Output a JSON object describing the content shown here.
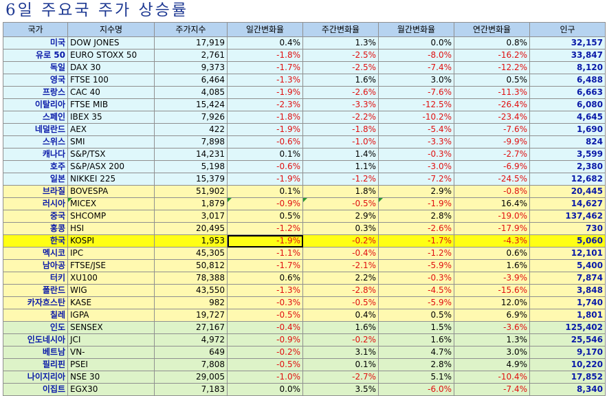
{
  "title": "6일 주요국 주가 상승률",
  "headers": [
    "국가",
    "지수명",
    "주가지수",
    "일간변화율",
    "주간변화율",
    "월간변화율",
    "연간변화율",
    "인구"
  ],
  "rows": [
    {
      "country": "미국",
      "index": "DOW JONES",
      "level": "17,919",
      "d": "0.4%",
      "w": "1.3%",
      "m": "0.0%",
      "y": "0.8%",
      "pop": "32,157"
    },
    {
      "country": "유로 50",
      "index": "EURO STOXX 50",
      "level": "2,761",
      "d": "-1.8%",
      "w": "-2.5%",
      "m": "-8.0%",
      "y": "-16.2%",
      "pop": "33,847"
    },
    {
      "country": "독일",
      "index": "DAX 30",
      "level": "9,373",
      "d": "-1.7%",
      "w": "-2.5%",
      "m": "-7.4%",
      "y": "-12.2%",
      "pop": "8,120"
    },
    {
      "country": "영국",
      "index": "FTSE 100",
      "level": "6,464",
      "d": "-1.3%",
      "w": "1.6%",
      "m": "3.0%",
      "y": "0.5%",
      "pop": "6,488"
    },
    {
      "country": "프랑스",
      "index": "CAC 40",
      "level": "4,085",
      "d": "-1.9%",
      "w": "-2.6%",
      "m": "-7.6%",
      "y": "-11.3%",
      "pop": "6,663"
    },
    {
      "country": "이탈리아",
      "index": "FTSE MIB",
      "level": "15,424",
      "d": "-2.3%",
      "w": "-3.3%",
      "m": "-12.5%",
      "y": "-26.4%",
      "pop": "6,080"
    },
    {
      "country": "스페인",
      "index": "IBEX 35",
      "level": "7,926",
      "d": "-1.8%",
      "w": "-2.2%",
      "m": "-10.2%",
      "y": "-23.4%",
      "pop": "4,645"
    },
    {
      "country": "네덜란드",
      "index": "AEX",
      "level": "422",
      "d": "-1.9%",
      "w": "-1.8%",
      "m": "-5.4%",
      "y": "-7.6%",
      "pop": "1,690"
    },
    {
      "country": "스위스",
      "index": "SMI",
      "level": "7,898",
      "d": "-0.6%",
      "w": "-1.0%",
      "m": "-3.3%",
      "y": "-9.9%",
      "pop": "824"
    },
    {
      "country": "캐나다",
      "index": "S&P/TSX",
      "level": "14,231",
      "d": "0.1%",
      "w": "1.4%",
      "m": "-0.3%",
      "y": "-2.7%",
      "pop": "3,599"
    },
    {
      "country": "호주",
      "index": "S&P/ASX 200",
      "level": "5,198",
      "d": "-0.6%",
      "w": "1.1%",
      "m": "-3.0%",
      "y": "-6.9%",
      "pop": "2,380"
    },
    {
      "country": "일본",
      "index": "NIKKEI 225",
      "level": "15,379",
      "d": "-1.9%",
      "w": "-1.2%",
      "m": "-7.2%",
      "y": "-24.5%",
      "pop": "12,682"
    },
    {
      "country": "브라질",
      "index": "BOVESPA",
      "level": "51,902",
      "d": "0.1%",
      "w": "1.8%",
      "m": "2.9%",
      "y": "-0.8%",
      "pop": "20,445"
    },
    {
      "country": "러시아",
      "index": "MICEX",
      "level": "1,879",
      "d": "-0.9%",
      "w": "-0.5%",
      "m": "-1.9%",
      "y": "16.4%",
      "pop": "14,627"
    },
    {
      "country": "중국",
      "index": "SHCOMP",
      "level": "3,017",
      "d": "0.5%",
      "w": "2.9%",
      "m": "2.8%",
      "y": "-19.0%",
      "pop": "137,462"
    },
    {
      "country": "홍콩",
      "index": "HSI",
      "level": "20,495",
      "d": "-1.2%",
      "w": "0.3%",
      "m": "-2.6%",
      "y": "-17.9%",
      "pop": "730"
    },
    {
      "country": "한국",
      "index": "KOSPI",
      "level": "1,953",
      "d": "-1.9%",
      "w": "-0.2%",
      "m": "-1.7%",
      "y": "-4.3%",
      "pop": "5,060"
    },
    {
      "country": "멕시코",
      "index": "IPC",
      "level": "45,305",
      "d": "-1.1%",
      "w": "-0.4%",
      "m": "-1.2%",
      "y": "0.6%",
      "pop": "12,101"
    },
    {
      "country": "남아공",
      "index": "FTSE/JSE",
      "level": "50,812",
      "d": "-1.7%",
      "w": "-2.1%",
      "m": "-5.9%",
      "y": "1.6%",
      "pop": "5,400"
    },
    {
      "country": "터키",
      "index": "XU100",
      "level": "78,388",
      "d": "0.6%",
      "w": "2.2%",
      "m": "-0.3%",
      "y": "-3.9%",
      "pop": "7,874"
    },
    {
      "country": "폴란드",
      "index": "WIG",
      "level": "43,550",
      "d": "-1.3%",
      "w": "-2.8%",
      "m": "-4.5%",
      "y": "-15.6%",
      "pop": "3,848"
    },
    {
      "country": "카자흐스탄",
      "index": "KASE",
      "level": "982",
      "d": "-0.3%",
      "w": "-0.5%",
      "m": "-5.9%",
      "y": "12.0%",
      "pop": "1,740"
    },
    {
      "country": "칠레",
      "index": "IGPA",
      "level": "19,727",
      "d": "-0.5%",
      "w": "0.4%",
      "m": "0.5%",
      "y": "6.9%",
      "pop": "1,801"
    },
    {
      "country": "인도",
      "index": "SENSEX",
      "level": "27,167",
      "d": "-0.4%",
      "w": "1.6%",
      "m": "1.5%",
      "y": "-3.6%",
      "pop": "125,402"
    },
    {
      "country": "인도네시아",
      "index": "JCI",
      "level": "4,972",
      "d": "-0.9%",
      "w": "-0.2%",
      "m": "1.6%",
      "y": "1.3%",
      "pop": "25,546"
    },
    {
      "country": "베트남",
      "index": "VN-",
      "level": "649",
      "d": "-0.2%",
      "w": "3.1%",
      "m": "4.7%",
      "y": "3.0%",
      "pop": "9,170"
    },
    {
      "country": "필리핀",
      "index": "PSEI",
      "level": "7,808",
      "d": "-0.5%",
      "w": "0.1%",
      "m": "2.8%",
      "y": "4.9%",
      "pop": "10,220"
    },
    {
      "country": "나이지리아",
      "index": "NSE 30",
      "level": "29,005",
      "d": "-1.0%",
      "w": "-2.7%",
      "m": "5.1%",
      "y": "-10.4%",
      "pop": "17,852"
    },
    {
      "country": "이집트",
      "index": "EGX30",
      "level": "7,183",
      "d": "0.0%",
      "w": "3.5%",
      "m": "-6.0%",
      "y": "-7.4%",
      "pop": "8,340"
    }
  ],
  "colors": {
    "header_bg": "#b6d3f0",
    "group_developed_bg": "#dff7fb",
    "group_emerging_bg": "#fff9b0",
    "group_asia_other_bg": "#ddf3c8",
    "highlight_row_bg": "#ffff14",
    "negative": "#e01010",
    "country_text": "#0a1aa8"
  }
}
